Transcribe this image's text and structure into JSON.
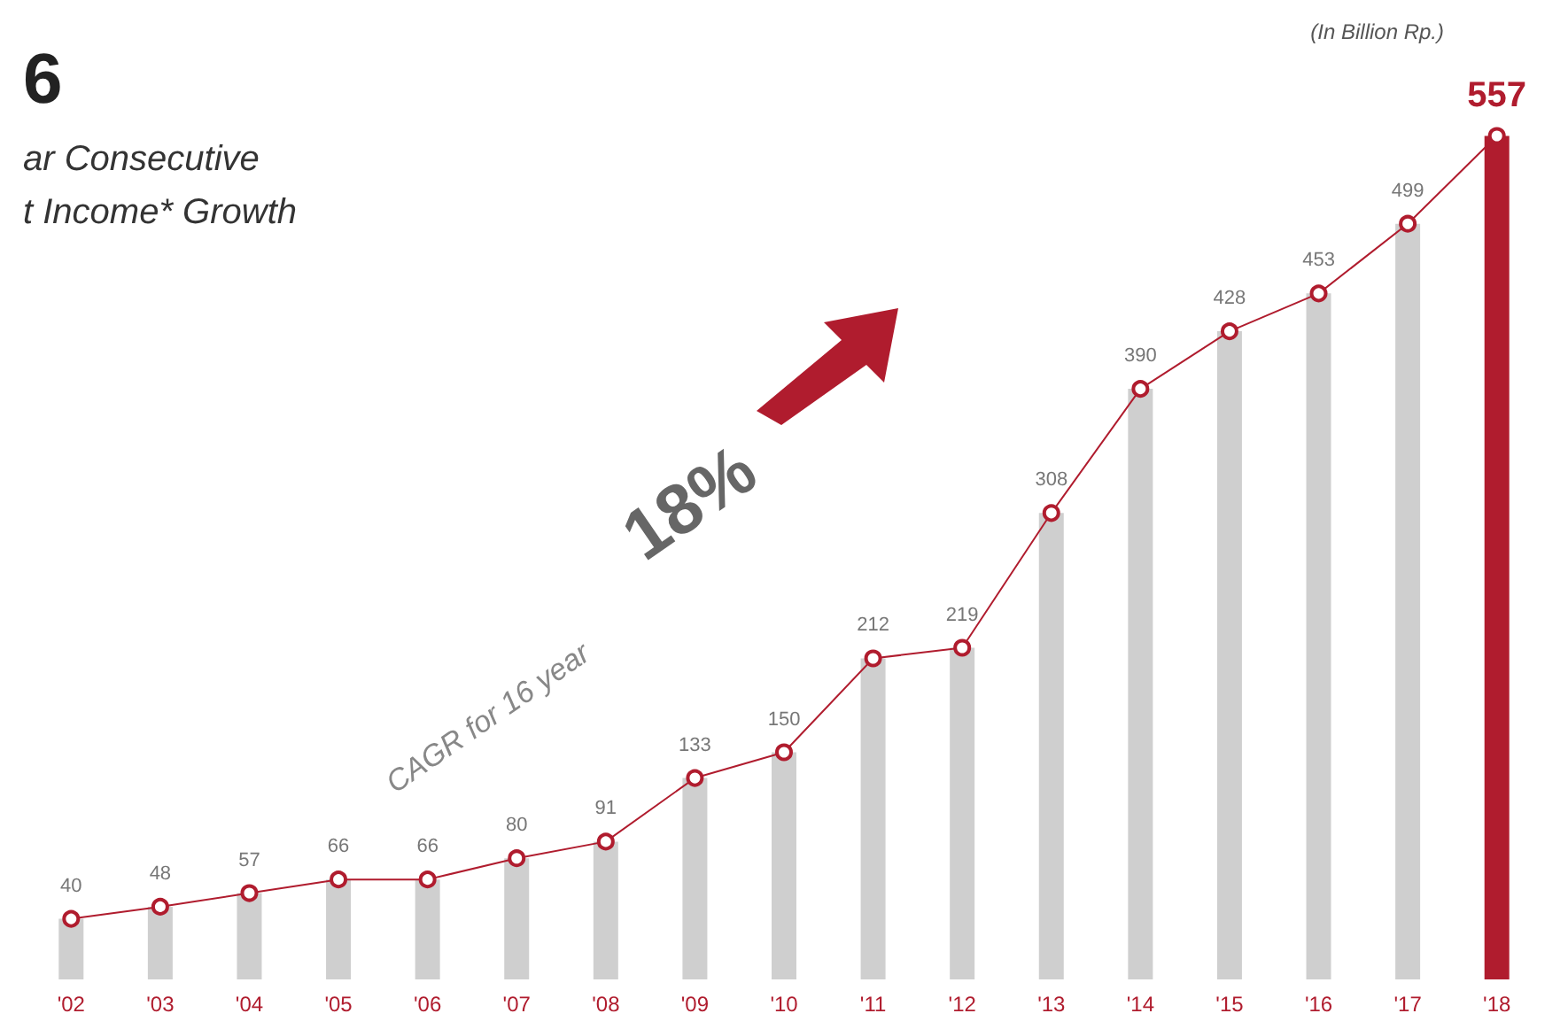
{
  "chart_data": {
    "type": "bar",
    "title": "6",
    "subtitle": "ar Consecutive\nt Income* Growth",
    "categories": [
      "'02",
      "'03",
      "'04",
      "'05",
      "'06",
      "'07",
      "'08",
      "'09",
      "'10",
      "'11",
      "'12",
      "'13",
      "'14",
      "'15",
      "'16",
      "'17",
      "'18"
    ],
    "series": [
      {
        "colors": [
          "#cfcfcf",
          "#cfcfcf",
          "#cfcfcf",
          "#cfcfcf",
          "#cfcfcf",
          "#cfcfcf",
          "#cfcfcf",
          "#cfcfcf",
          "#cfcfcf",
          "#cfcfcf",
          "#cfcfcf",
          "#cfcfcf",
          "#cfcfcf",
          "#cfcfcf",
          "#cfcfcf",
          "#cfcfcf",
          "#b01c2e"
        ],
        "values": [
          40,
          48,
          57,
          66,
          66,
          80,
          91,
          133,
          150,
          212,
          219,
          308,
          390,
          428,
          453,
          499,
          557
        ]
      },
      {
        "type": "line",
        "color": "#b01c2e",
        "values": [
          40,
          48,
          57,
          66,
          66,
          80,
          91,
          133,
          150,
          212,
          219,
          308,
          390,
          428,
          453,
          499,
          557
        ],
        "value_labels": [
          "40",
          "48",
          "57",
          "66",
          "66",
          "80",
          "91",
          "133",
          "150",
          "212",
          "219",
          "308",
          "390",
          "428",
          "453",
          "499",
          "557"
        ]
      }
    ],
    "annotations": [
      "(In Billion Rp.)",
      "CAGR for 16 year",
      "18%"
    ],
    "marker": "circle"
  }
}
